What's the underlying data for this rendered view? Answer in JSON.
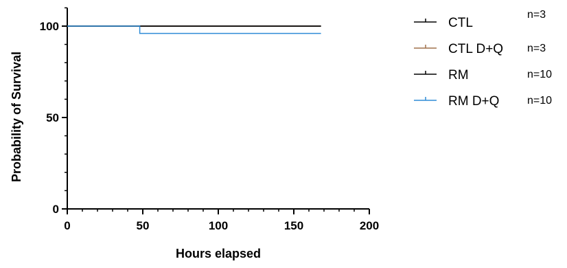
{
  "chart_data": {
    "type": "line",
    "title": "",
    "xlabel": "Hours elapsed",
    "ylabel": "Probability of Survival",
    "xlim": [
      0,
      200
    ],
    "ylim": [
      0,
      110
    ],
    "xticks": [
      0,
      50,
      100,
      150,
      200
    ],
    "yticks": [
      0,
      50,
      100
    ],
    "xtick_labels": [
      "0",
      "50",
      "100",
      "150",
      "200"
    ],
    "ytick_labels": [
      "0",
      "50",
      "100"
    ],
    "grid": false,
    "legend_position": "right",
    "series": [
      {
        "name": "CTL",
        "n_label": "n=3",
        "color": "#000000",
        "x": [
          0,
          168
        ],
        "y": [
          100,
          100
        ]
      },
      {
        "name": "CTL D+Q",
        "n_label": "n=3",
        "color": "#a0704a",
        "x": [
          0,
          168
        ],
        "y": [
          100,
          100
        ]
      },
      {
        "name": "RM",
        "n_label": "n=10",
        "color": "#000000",
        "x": [
          0,
          168
        ],
        "y": [
          100,
          100
        ]
      },
      {
        "name": "RM D+Q",
        "n_label": "n=10",
        "color": "#2e8bd6",
        "x": [
          0,
          48,
          48,
          168
        ],
        "y": [
          100,
          100,
          96,
          96
        ]
      }
    ]
  }
}
